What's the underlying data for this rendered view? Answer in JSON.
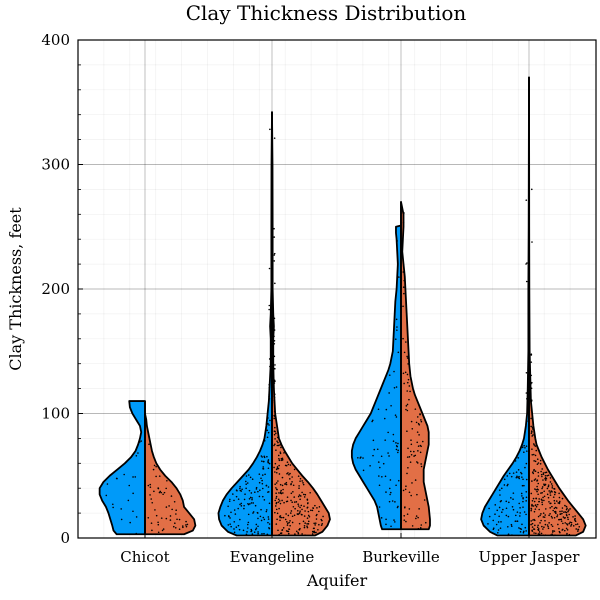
{
  "chart_data": {
    "type": "violin",
    "title": "Clay Thickness Distribution",
    "xlabel": "Aquifer",
    "ylabel": "Clay Thickness, feet",
    "ylim": [
      0,
      400
    ],
    "yticks": [
      0,
      100,
      200,
      300,
      400
    ],
    "grid": true,
    "categories": [
      "Chicot",
      "Evangeline",
      "Burkeville",
      "Upper Jasper"
    ],
    "colors": {
      "left": "#009AF9",
      "right": "#E26F46"
    },
    "violins": [
      {
        "category": "Chicot",
        "y_min": 3,
        "y_max": 110,
        "width_scale": 1.0,
        "left_density": [
          [
            3,
            0.45
          ],
          [
            6,
            0.5
          ],
          [
            10,
            0.52
          ],
          [
            15,
            0.55
          ],
          [
            20,
            0.58
          ],
          [
            25,
            0.62
          ],
          [
            30,
            0.68
          ],
          [
            35,
            0.72
          ],
          [
            40,
            0.72
          ],
          [
            45,
            0.66
          ],
          [
            50,
            0.56
          ],
          [
            55,
            0.44
          ],
          [
            60,
            0.32
          ],
          [
            65,
            0.22
          ],
          [
            70,
            0.15
          ],
          [
            75,
            0.11
          ],
          [
            80,
            0.08
          ],
          [
            85,
            0.06
          ],
          [
            90,
            0.08
          ],
          [
            95,
            0.14
          ],
          [
            100,
            0.2
          ],
          [
            105,
            0.24
          ],
          [
            110,
            0.25
          ]
        ],
        "right_density": [
          [
            3,
            0.62
          ],
          [
            6,
            0.76
          ],
          [
            10,
            0.8
          ],
          [
            15,
            0.78
          ],
          [
            20,
            0.7
          ],
          [
            25,
            0.62
          ],
          [
            30,
            0.6
          ],
          [
            35,
            0.56
          ],
          [
            40,
            0.5
          ],
          [
            45,
            0.42
          ],
          [
            50,
            0.32
          ],
          [
            55,
            0.24
          ],
          [
            60,
            0.18
          ],
          [
            65,
            0.14
          ],
          [
            70,
            0.11
          ],
          [
            75,
            0.09
          ],
          [
            80,
            0.07
          ],
          [
            85,
            0.05
          ],
          [
            90,
            0.03
          ],
          [
            95,
            0.02
          ],
          [
            100,
            0.0
          ]
        ],
        "n_points_left": 22,
        "n_points_right": 55
      },
      {
        "category": "Evangeline",
        "y_min": 2,
        "y_max": 342,
        "width_scale": 1.0,
        "left_density": [
          [
            2,
            0.56
          ],
          [
            5,
            0.7
          ],
          [
            10,
            0.8
          ],
          [
            15,
            0.84
          ],
          [
            20,
            0.85
          ],
          [
            25,
            0.82
          ],
          [
            30,
            0.78
          ],
          [
            35,
            0.72
          ],
          [
            40,
            0.64
          ],
          [
            45,
            0.55
          ],
          [
            50,
            0.46
          ],
          [
            55,
            0.37
          ],
          [
            60,
            0.3
          ],
          [
            65,
            0.24
          ],
          [
            70,
            0.19
          ],
          [
            75,
            0.15
          ],
          [
            80,
            0.12
          ],
          [
            90,
            0.09
          ],
          [
            100,
            0.07
          ],
          [
            110,
            0.05
          ],
          [
            120,
            0.04
          ],
          [
            130,
            0.03
          ],
          [
            140,
            0.02
          ],
          [
            160,
            0.02
          ],
          [
            170,
            0.03
          ],
          [
            180,
            0.02
          ],
          [
            200,
            0.01
          ],
          [
            250,
            0.01
          ],
          [
            300,
            0.008
          ],
          [
            342,
            0.0
          ]
        ],
        "right_density": [
          [
            2,
            0.68
          ],
          [
            5,
            0.8
          ],
          [
            10,
            0.88
          ],
          [
            15,
            0.92
          ],
          [
            20,
            0.9
          ],
          [
            25,
            0.84
          ],
          [
            30,
            0.78
          ],
          [
            35,
            0.72
          ],
          [
            40,
            0.65
          ],
          [
            45,
            0.57
          ],
          [
            50,
            0.48
          ],
          [
            55,
            0.4
          ],
          [
            60,
            0.32
          ],
          [
            65,
            0.26
          ],
          [
            70,
            0.2
          ],
          [
            75,
            0.15
          ],
          [
            80,
            0.11
          ],
          [
            90,
            0.08
          ],
          [
            100,
            0.05
          ],
          [
            110,
            0.04
          ],
          [
            120,
            0.03
          ],
          [
            140,
            0.02
          ],
          [
            160,
            0.02
          ],
          [
            170,
            0.03
          ],
          [
            180,
            0.02
          ],
          [
            200,
            0.01
          ],
          [
            250,
            0.01
          ],
          [
            300,
            0.008
          ],
          [
            342,
            0.0
          ]
        ],
        "n_points_left": 160,
        "n_points_right": 260
      },
      {
        "category": "Burkeville",
        "y_min": 7,
        "y_max": 270,
        "width_scale": 1.0,
        "left_density": [
          [
            7,
            0.3
          ],
          [
            10,
            0.32
          ],
          [
            15,
            0.34
          ],
          [
            20,
            0.36
          ],
          [
            25,
            0.38
          ],
          [
            30,
            0.42
          ],
          [
            35,
            0.48
          ],
          [
            40,
            0.54
          ],
          [
            45,
            0.6
          ],
          [
            50,
            0.66
          ],
          [
            55,
            0.72
          ],
          [
            60,
            0.76
          ],
          [
            65,
            0.78
          ],
          [
            70,
            0.78
          ],
          [
            75,
            0.76
          ],
          [
            80,
            0.72
          ],
          [
            85,
            0.66
          ],
          [
            90,
            0.6
          ],
          [
            95,
            0.54
          ],
          [
            100,
            0.48
          ],
          [
            105,
            0.44
          ],
          [
            110,
            0.4
          ],
          [
            115,
            0.36
          ],
          [
            120,
            0.32
          ],
          [
            125,
            0.28
          ],
          [
            130,
            0.24
          ],
          [
            135,
            0.2
          ],
          [
            140,
            0.17
          ],
          [
            145,
            0.15
          ],
          [
            150,
            0.13
          ],
          [
            160,
            0.12
          ],
          [
            170,
            0.11
          ],
          [
            180,
            0.1
          ],
          [
            190,
            0.09
          ],
          [
            200,
            0.07
          ],
          [
            210,
            0.06
          ],
          [
            220,
            0.05
          ],
          [
            230,
            0.06
          ],
          [
            240,
            0.07
          ],
          [
            245,
            0.08
          ],
          [
            250,
            0.08
          ],
          [
            251,
            0.0
          ]
        ],
        "right_density": [
          [
            7,
            0.44
          ],
          [
            10,
            0.46
          ],
          [
            15,
            0.46
          ],
          [
            20,
            0.45
          ],
          [
            25,
            0.44
          ],
          [
            30,
            0.42
          ],
          [
            35,
            0.4
          ],
          [
            40,
            0.38
          ],
          [
            45,
            0.36
          ],
          [
            50,
            0.36
          ],
          [
            55,
            0.36
          ],
          [
            60,
            0.38
          ],
          [
            65,
            0.4
          ],
          [
            70,
            0.42
          ],
          [
            75,
            0.44
          ],
          [
            80,
            0.44
          ],
          [
            85,
            0.44
          ],
          [
            90,
            0.42
          ],
          [
            95,
            0.38
          ],
          [
            100,
            0.34
          ],
          [
            105,
            0.3
          ],
          [
            110,
            0.26
          ],
          [
            115,
            0.22
          ],
          [
            120,
            0.19
          ],
          [
            125,
            0.17
          ],
          [
            130,
            0.15
          ],
          [
            140,
            0.13
          ],
          [
            150,
            0.12
          ],
          [
            160,
            0.11
          ],
          [
            170,
            0.1
          ],
          [
            180,
            0.09
          ],
          [
            190,
            0.08
          ],
          [
            200,
            0.07
          ],
          [
            210,
            0.06
          ],
          [
            220,
            0.04
          ],
          [
            230,
            0.02
          ],
          [
            240,
            0.03
          ],
          [
            250,
            0.04
          ],
          [
            260,
            0.04
          ],
          [
            270,
            0.0
          ]
        ],
        "n_points_left": 70,
        "n_points_right": 90
      },
      {
        "category": "Upper Jasper",
        "y_min": 2,
        "y_max": 370,
        "width_scale": 1.0,
        "left_density": [
          [
            2,
            0.5
          ],
          [
            5,
            0.62
          ],
          [
            10,
            0.72
          ],
          [
            15,
            0.76
          ],
          [
            20,
            0.74
          ],
          [
            25,
            0.7
          ],
          [
            30,
            0.64
          ],
          [
            35,
            0.58
          ],
          [
            40,
            0.52
          ],
          [
            45,
            0.46
          ],
          [
            50,
            0.4
          ],
          [
            55,
            0.33
          ],
          [
            60,
            0.26
          ],
          [
            65,
            0.2
          ],
          [
            70,
            0.15
          ],
          [
            75,
            0.11
          ],
          [
            80,
            0.08
          ],
          [
            90,
            0.05
          ],
          [
            100,
            0.03
          ],
          [
            120,
            0.02
          ],
          [
            150,
            0.01
          ],
          [
            200,
            0.01
          ],
          [
            250,
            0.005
          ],
          [
            300,
            0.003
          ],
          [
            370,
            0.0
          ]
        ],
        "right_density": [
          [
            2,
            0.74
          ],
          [
            5,
            0.86
          ],
          [
            10,
            0.9
          ],
          [
            15,
            0.86
          ],
          [
            20,
            0.78
          ],
          [
            25,
            0.7
          ],
          [
            30,
            0.62
          ],
          [
            35,
            0.55
          ],
          [
            40,
            0.48
          ],
          [
            45,
            0.42
          ],
          [
            50,
            0.36
          ],
          [
            55,
            0.3
          ],
          [
            60,
            0.25
          ],
          [
            65,
            0.2
          ],
          [
            70,
            0.16
          ],
          [
            75,
            0.12
          ],
          [
            80,
            0.1
          ],
          [
            90,
            0.07
          ],
          [
            100,
            0.05
          ],
          [
            110,
            0.03
          ],
          [
            130,
            0.02
          ],
          [
            150,
            0.01
          ],
          [
            200,
            0.005
          ],
          [
            250,
            0.003
          ],
          [
            300,
            0.002
          ],
          [
            370,
            0.0
          ]
        ],
        "n_points_left": 110,
        "n_points_right": 280
      }
    ]
  }
}
